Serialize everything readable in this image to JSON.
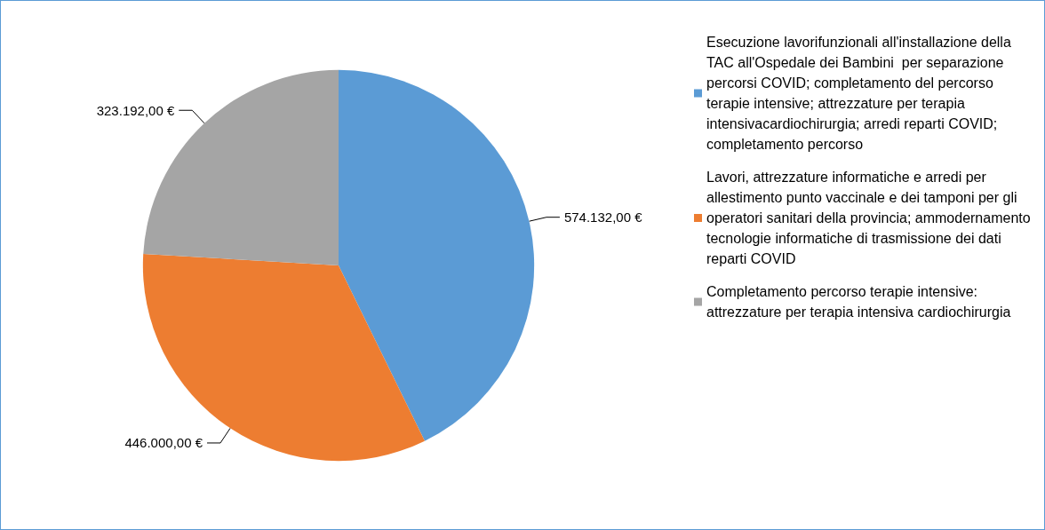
{
  "chart_data": {
    "type": "pie",
    "categories": [
      "Esecuzione lavorifunzionali all'installazione della TAC all'Ospedale dei Bambini  per separazione percorsi COVID; completamento del percorso terapie intensive; attrezzature per terapia intensivacardiochirurgia; arredi reparti COVID; completamento percorso",
      "Lavori, attrezzature informatiche e arredi per allestimento punto vaccinale e dei tamponi per gli operatori sanitari della provincia; ammodernamento tecnologie informatiche di trasmissione dei dati reparti COVID",
      "Completamento percorso terapie intensive: attrezzature per terapia intensiva cardiochirurgia"
    ],
    "values": [
      574132,
      446000,
      323192
    ],
    "value_labels": [
      "574.132,00 €",
      "446.000,00 €",
      "323.192,00 €"
    ],
    "colors": [
      "#5b9bd5",
      "#ed7d31",
      "#a5a5a5"
    ],
    "legend": "right"
  }
}
